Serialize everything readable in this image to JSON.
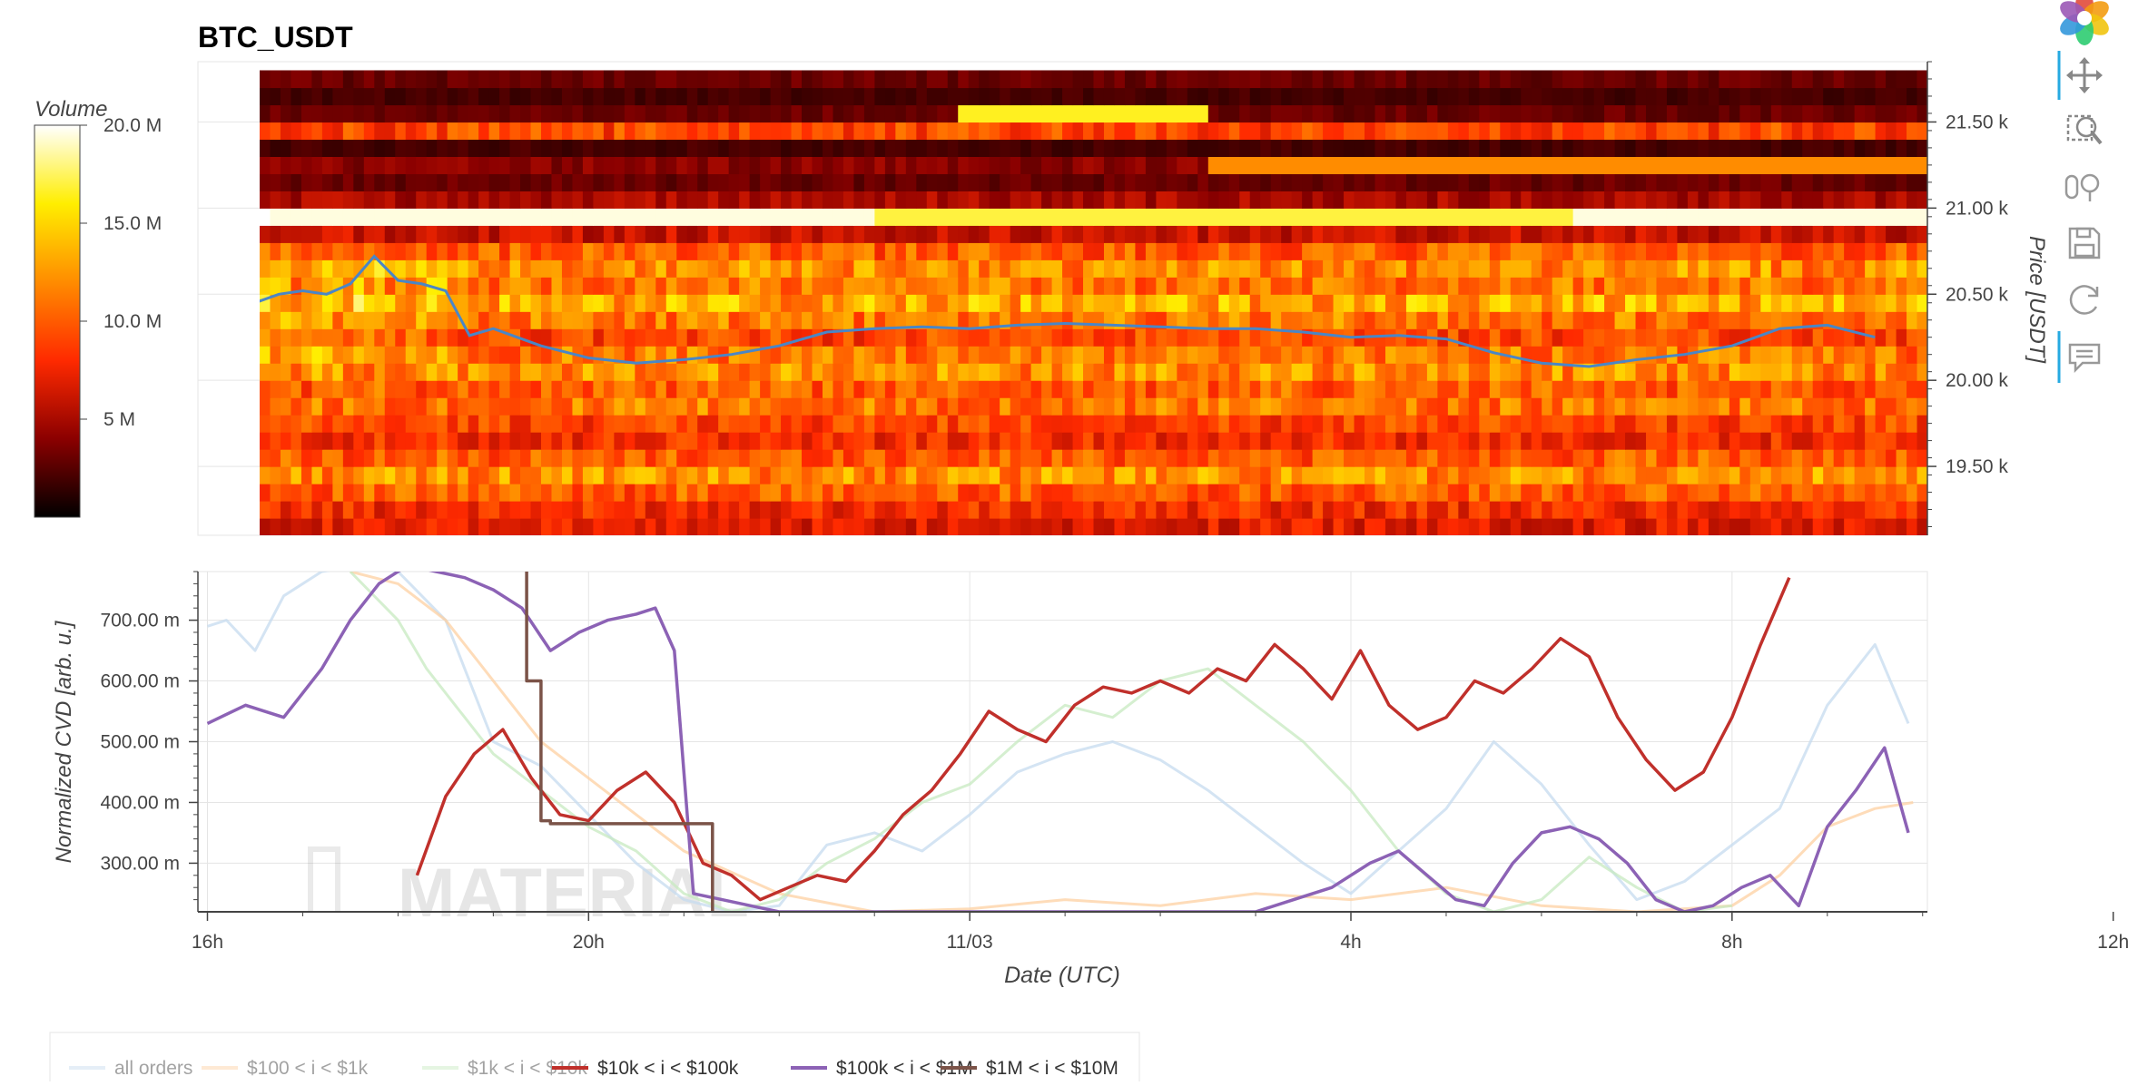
{
  "chart_data": [
    {
      "type": "heatmap",
      "title": "BTC_USDT",
      "ylabel": "Price [USDT]",
      "ylim": [
        19100,
        21850
      ],
      "ytick_values": [
        19500,
        20000,
        20500,
        21000,
        21500
      ],
      "ytick_labels": [
        "19.50 k",
        "20.00 k",
        "20.50 k",
        "21.00 k",
        "21.50 k"
      ],
      "xlim": [
        -0.1,
        18.05
      ],
      "time_axis_note": "x in hours since 16h on the left",
      "colorbar": {
        "title": "Volume",
        "range": [
          0,
          20000000
        ],
        "tick_values": [
          5000000,
          10000000,
          15000000,
          20000000
        ],
        "tick_labels": [
          "5 M",
          "10.0 M",
          "15.0 M",
          "20.0 M"
        ],
        "palette": [
          "#000000",
          "#8b0000",
          "#ff2a00",
          "#ff8c00",
          "#ffee00",
          "#ffffff"
        ]
      },
      "price_levels": [
        19150,
        19250,
        19350,
        19450,
        19550,
        19650,
        19750,
        19850,
        19950,
        20050,
        20150,
        20250,
        20350,
        20450,
        20550,
        20650,
        20750,
        20850,
        20950,
        21050,
        21150,
        21250,
        21350,
        21450,
        21550,
        21650,
        21750
      ],
      "level_volume_M": [
        7,
        8,
        10,
        12,
        10,
        8,
        9,
        11,
        10,
        12,
        11,
        9,
        11,
        13,
        11,
        12,
        10,
        6,
        19,
        5,
        3,
        4,
        2,
        9,
        3,
        2,
        3
      ],
      "line_series": {
        "name": "price",
        "color": "#4a86c6",
        "x": [
          0,
          0.25,
          0.5,
          0.75,
          1,
          1.25,
          1.5,
          1.75,
          2,
          2.25,
          2.5,
          2.75,
          3,
          3.25,
          3.5,
          4,
          4.5,
          5,
          5.5,
          6,
          6.5,
          7,
          7.5,
          8,
          8.5,
          9,
          9.5,
          10,
          10.5,
          11,
          11.5,
          12,
          12.5,
          13,
          13.5,
          14,
          14.5,
          15,
          15.5,
          16,
          16.5,
          17,
          17.5
        ],
        "y": [
          20380,
          20400,
          20450,
          20500,
          20520,
          20500,
          20560,
          20720,
          20580,
          20560,
          20520,
          20260,
          20300,
          20250,
          20200,
          20130,
          20100,
          20120,
          20150,
          20200,
          20280,
          20300,
          20310,
          20300,
          20320,
          20330,
          20320,
          20310,
          20300,
          20300,
          20280,
          20250,
          20260,
          20240,
          20160,
          20100,
          20080,
          20120,
          20150,
          20200,
          20300,
          20320,
          20250
        ]
      }
    },
    {
      "type": "line",
      "ylabel": "Normalized CVD [arb. u.]",
      "xlabel": "Date (UTC)",
      "ylim": [
        220,
        780
      ],
      "xlim": [
        -0.1,
        18.05
      ],
      "ytick_values": [
        300,
        400,
        500,
        600,
        700
      ],
      "ytick_labels": [
        "300.00 m",
        "400.00 m",
        "500.00 m",
        "600.00 m",
        "700.00 m"
      ],
      "xtick_values": [
        0,
        4,
        8,
        12,
        16,
        20
      ],
      "xtick_labels": [
        "16h",
        "20h",
        "11/03",
        "4h",
        "8h",
        "12h"
      ],
      "watermark": "MATERIAL",
      "series": [
        {
          "name": "all orders",
          "color": "#c6dbef",
          "faded": true,
          "x": [
            0,
            0.2,
            0.5,
            0.8,
            1.2,
            1.6,
            2,
            2.5,
            3,
            3.5,
            4,
            4.5,
            5,
            5.5,
            6,
            6.5,
            7,
            7.5,
            8,
            8.5,
            9,
            9.5,
            10,
            10.5,
            11,
            11.5,
            12,
            12.5,
            13,
            13.5,
            14,
            14.5,
            15,
            15.5,
            16,
            16.5,
            17,
            17.5,
            17.85
          ],
          "y": [
            690,
            700,
            650,
            740,
            780,
            790,
            780,
            700,
            500,
            460,
            380,
            300,
            240,
            220,
            230,
            330,
            350,
            320,
            380,
            450,
            480,
            500,
            470,
            420,
            360,
            300,
            250,
            320,
            390,
            500,
            430,
            330,
            240,
            270,
            330,
            390,
            560,
            660,
            530
          ]
        },
        {
          "name": "$100 < i < $1k",
          "color": "#fdd0a2",
          "faded": true,
          "x": [
            1.5,
            2,
            2.5,
            2.9,
            3.2,
            3.5,
            4,
            4.5,
            5,
            6,
            7,
            8,
            9,
            10,
            11,
            12,
            13,
            14,
            15,
            16,
            16.5,
            17,
            17.5,
            17.9
          ],
          "y": [
            780,
            760,
            700,
            620,
            560,
            500,
            440,
            380,
            320,
            250,
            220,
            225,
            240,
            230,
            250,
            240,
            260,
            230,
            220,
            230,
            280,
            360,
            390,
            400
          ]
        },
        {
          "name": "$1k < i < $10k",
          "color": "#c7e9c0",
          "faded": true,
          "x": [
            1.5,
            2,
            2.3,
            2.6,
            3,
            3.5,
            4,
            4.5,
            5,
            5.5,
            6,
            6.5,
            7,
            7.5,
            8,
            8.5,
            9,
            9.5,
            10,
            10.5,
            11,
            11.5,
            12,
            12.5,
            13,
            13.5,
            14,
            14.5,
            15,
            15.5,
            16
          ],
          "y": [
            780,
            700,
            620,
            560,
            480,
            420,
            360,
            320,
            250,
            220,
            240,
            300,
            340,
            400,
            430,
            500,
            560,
            540,
            600,
            620,
            560,
            500,
            420,
            320,
            250,
            220,
            240,
            310,
            260,
            220,
            230
          ]
        },
        {
          "name": "$10k < i < $100k",
          "color": "#c0302b",
          "x": [
            2.2,
            2.5,
            2.8,
            3.1,
            3.4,
            3.7,
            4.0,
            4.3,
            4.6,
            4.9,
            5.2,
            5.5,
            5.8,
            6.1,
            6.4,
            6.7,
            7.0,
            7.3,
            7.6,
            7.9,
            8.2,
            8.5,
            8.8,
            9.1,
            9.4,
            9.7,
            10.0,
            10.3,
            10.6,
            10.9,
            11.2,
            11.5,
            11.8,
            12.1,
            12.4,
            12.7,
            13.0,
            13.3,
            13.6,
            13.9,
            14.2,
            14.5,
            14.8,
            15.1,
            15.4,
            15.7,
            16.0,
            16.3,
            16.6
          ],
          "y": [
            280,
            410,
            480,
            520,
            440,
            380,
            370,
            420,
            450,
            400,
            300,
            280,
            240,
            260,
            280,
            270,
            320,
            380,
            420,
            480,
            550,
            520,
            500,
            560,
            590,
            580,
            600,
            580,
            620,
            600,
            660,
            620,
            570,
            650,
            560,
            520,
            540,
            600,
            580,
            620,
            670,
            640,
            540,
            470,
            420,
            450,
            540,
            660,
            770
          ]
        },
        {
          "name": "$100k < i < $1M",
          "color": "#8c62b5",
          "x": [
            0,
            0.4,
            0.8,
            1.2,
            1.5,
            1.8,
            2.1,
            2.4,
            2.7,
            3.0,
            3.3,
            3.6,
            3.9,
            4.2,
            4.5,
            4.7,
            4.9,
            5.1,
            5.4,
            5.7,
            6.0,
            11,
            11.4,
            11.8,
            12.2,
            12.5,
            12.8,
            13.1,
            13.4,
            13.7,
            14.0,
            14.3,
            14.6,
            14.9,
            15.2,
            15.5,
            15.8,
            16.1,
            16.4,
            16.7,
            17.0,
            17.3,
            17.6,
            17.85
          ],
          "y": [
            530,
            560,
            540,
            620,
            700,
            760,
            790,
            780,
            770,
            750,
            720,
            650,
            680,
            700,
            710,
            720,
            650,
            250,
            240,
            230,
            220,
            220,
            240,
            260,
            300,
            320,
            280,
            240,
            230,
            300,
            350,
            360,
            340,
            300,
            240,
            220,
            230,
            260,
            280,
            230,
            360,
            420,
            490,
            350
          ]
        },
        {
          "name": "$1M < i < $10M",
          "color": "#7b5348",
          "x": [
            3.35,
            3.35,
            3.5,
            3.5,
            3.6,
            3.6,
            5.3,
            5.3
          ],
          "y": [
            780,
            600,
            600,
            370,
            370,
            365,
            365,
            220
          ]
        }
      ]
    }
  ],
  "legend": [
    {
      "label": "all orders",
      "color": "#c6dbef",
      "muted": true
    },
    {
      "label": "$100 < i < $1k",
      "color": "#fdd0a2",
      "muted": true
    },
    {
      "label": "$1k < i < $10k",
      "color": "#c7e9c0",
      "muted": true
    },
    {
      "label": "$10k < i < $100k",
      "color": "#c0302b",
      "muted": false
    },
    {
      "label": "$100k < i < $1M",
      "color": "#8c62b5",
      "muted": false
    },
    {
      "label": "$1M < i < $10M",
      "color": "#7b5348",
      "muted": false
    }
  ],
  "toolbar": [
    {
      "name": "bokeh-logo-icon"
    },
    {
      "name": "pan-tool-icon"
    },
    {
      "name": "box-zoom-tool-icon"
    },
    {
      "name": "wheel-zoom-tool-icon"
    },
    {
      "name": "save-tool-icon"
    },
    {
      "name": "reset-tool-icon"
    },
    {
      "name": "hover-tool-icon"
    }
  ]
}
